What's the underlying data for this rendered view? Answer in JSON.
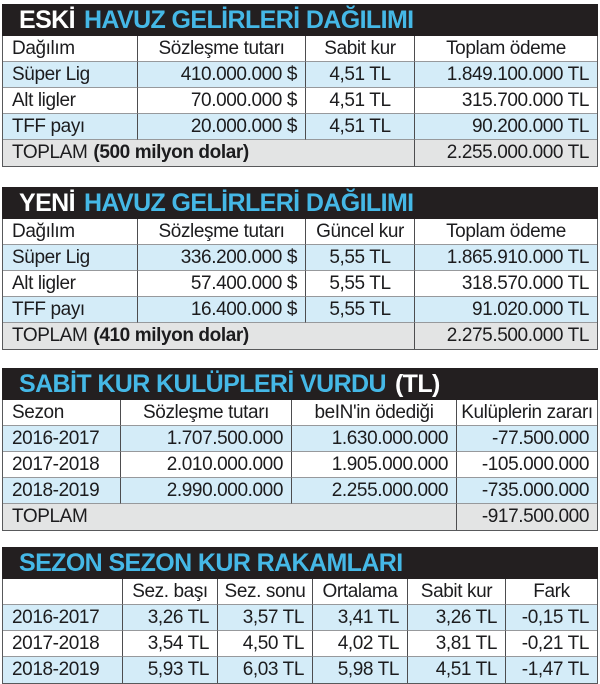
{
  "colors": {
    "title_bar_bg": "#231f20",
    "title_cyan": "#45b8e6",
    "title_white": "#ffffff",
    "row_light_blue": "#d4ecf8",
    "total_row_gray": "#e3e4e4",
    "text": "#1c1c1e"
  },
  "chart_data": [
    {
      "type": "table",
      "title": "ESKİ HAVUZ GELİRLERİ DAĞILIMI",
      "title_segments": [
        {
          "text": "ESKİ",
          "style": "white"
        },
        {
          "text": "HAVUZ GELİRLERİ DAĞILIMI",
          "style": "cyan"
        }
      ],
      "columns": [
        "Dağılım",
        "Sözleşme tutarı",
        "Sabit kur",
        "Toplam ödeme"
      ],
      "rows": [
        [
          "Süper Lig",
          "410.000.000 $",
          "4,51 TL",
          "1.849.100.000 TL"
        ],
        [
          "Alt ligler",
          "70.000.000 $",
          "4,51 TL",
          "315.700.000 TL"
        ],
        [
          "TFF payı",
          "20.000.000 $",
          "4,51 TL",
          "90.200.000 TL"
        ]
      ],
      "total_row": {
        "label": "TOPLAM",
        "label_bold": "(500 milyon dolar)",
        "value": "2.255.000.000 TL"
      }
    },
    {
      "type": "table",
      "title": "YENİ HAVUZ GELİRLERİ DAĞILIMI",
      "title_segments": [
        {
          "text": "YENİ",
          "style": "white"
        },
        {
          "text": "HAVUZ GELİRLERİ DAĞILIMI",
          "style": "cyan"
        }
      ],
      "columns": [
        "Dağılım",
        "Sözleşme tutarı",
        "Güncel kur",
        "Toplam ödeme"
      ],
      "rows": [
        [
          "Süper Lig",
          "336.200.000 $",
          "5,55 TL",
          "1.865.910.000 TL"
        ],
        [
          "Alt ligler",
          "57.400.000 $",
          "5,55 TL",
          "318.570.000 TL"
        ],
        [
          "TFF payı",
          "16.400.000 $",
          "5,55 TL",
          "91.020.000 TL"
        ]
      ],
      "total_row": {
        "label": "TOPLAM",
        "label_bold": "(410 milyon dolar)",
        "value": "2.275.500.000 TL"
      }
    },
    {
      "type": "table",
      "title": "SABİT KUR KULÜPLERİ VURDU (TL)",
      "title_segments": [
        {
          "text": "SABİT KUR KULÜPLERİ VURDU",
          "style": "cyan"
        },
        {
          "text": "(TL)",
          "style": "white"
        }
      ],
      "columns": [
        "Sezon",
        "Sözleşme tutarı",
        "beIN'in ödediği",
        "Kulüplerin zararı"
      ],
      "rows": [
        [
          "2016-2017",
          "1.707.500.000",
          "1.630.000.000",
          "-77.500.000"
        ],
        [
          "2017-2018",
          "2.010.000.000",
          "1.905.000.000",
          "-105.000.000"
        ],
        [
          "2018-2019",
          "2.990.000.000",
          "2.255.000.000",
          "-735.000.000"
        ]
      ],
      "total_row": {
        "label": "TOPLAM",
        "label_bold": "",
        "value": "-917.500.000"
      }
    },
    {
      "type": "table",
      "title": "SEZON SEZON KUR RAKAMLARI",
      "title_segments": [
        {
          "text": "SEZON SEZON KUR RAKAMLARI",
          "style": "cyan"
        }
      ],
      "columns": [
        "",
        "Sez. başı",
        "Sez. sonu",
        "Ortalama",
        "Sabit kur",
        "Fark"
      ],
      "rows": [
        [
          "2016-2017",
          "3,26 TL",
          "3,57 TL",
          "3,41 TL",
          "3,26 TL",
          "-0,15 TL"
        ],
        [
          "2017-2018",
          "3,54 TL",
          "4,50 TL",
          "4,02 TL",
          "3,81 TL",
          "-0,21 TL"
        ],
        [
          "2018-2019",
          "5,93 TL",
          "6,03 TL",
          "5,98 TL",
          "4,51 TL",
          "-1,47 TL"
        ]
      ]
    }
  ]
}
